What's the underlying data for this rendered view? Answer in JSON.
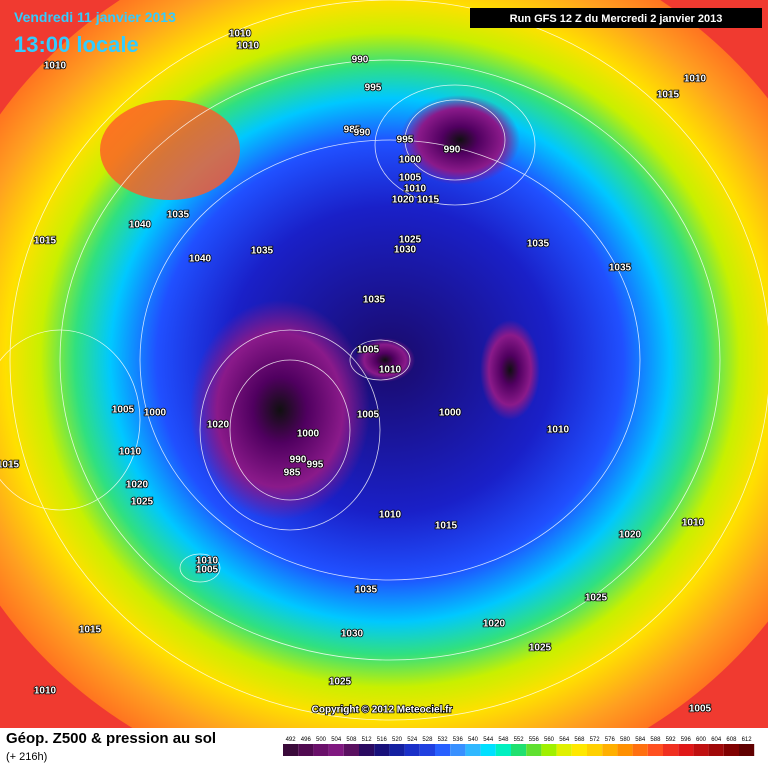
{
  "header": {
    "date": "Vendredi 11 janvier 2013",
    "time": "13:00 locale"
  },
  "run": "Run GFS 12 Z du Mercredi 2 janvier 2013",
  "copyright": "Copyright © 2012 Meteociel.fr",
  "footer": {
    "title": "Géop. Z500 & pression au sol",
    "lead": "(+ 216h)"
  },
  "legend": {
    "labels": [
      492,
      496,
      500,
      504,
      508,
      512,
      516,
      520,
      524,
      528,
      532,
      536,
      540,
      544,
      548,
      552,
      556,
      560,
      564,
      568,
      572,
      576,
      580,
      584,
      588,
      592,
      596,
      600,
      604,
      608,
      612
    ]
  },
  "isobar_labels": [
    1010,
    1010,
    1010,
    990,
    995,
    985,
    990,
    995,
    990,
    1000,
    1005,
    1010,
    1020,
    1015,
    1035,
    1040,
    1015,
    1035,
    1040,
    1025,
    1030,
    1035,
    1035,
    1010,
    1015,
    1035,
    1005,
    1010,
    1005,
    1000,
    1020,
    1005,
    1000,
    1010,
    1000,
    990,
    995,
    985,
    1015,
    1010,
    1020,
    1025,
    1010,
    1015,
    1020,
    1010,
    1010,
    1005,
    1035,
    1025,
    1015,
    1030,
    1020,
    1025,
    1025,
    1010,
    1005
  ]
}
